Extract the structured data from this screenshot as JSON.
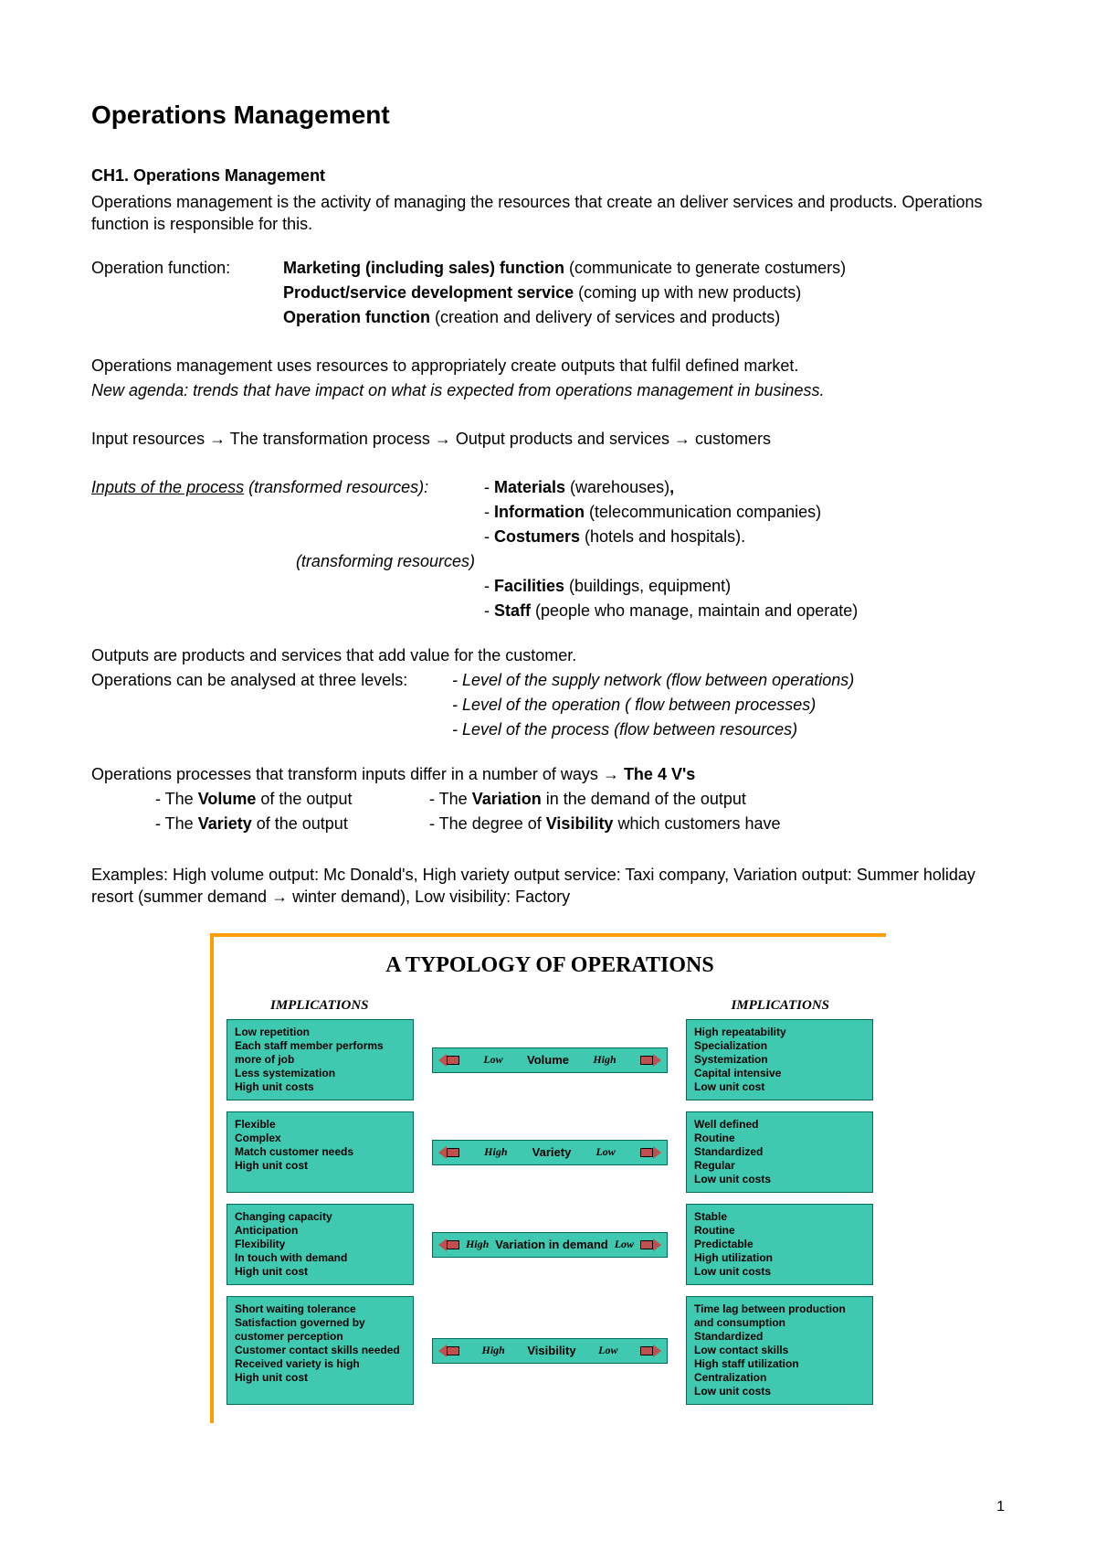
{
  "title": "Operations Management",
  "chapter": "CH1. Operations Management",
  "intro": "Operations management is the activity of managing the resources that create an deliver services and products. Operations function is responsible for this.",
  "op_fn_label": "Operation function:",
  "op_fn": {
    "l1b": "Marketing (including sales) function",
    "l1r": " (communicate to generate costumers)",
    "l2b": "Product/service development service",
    "l2r": " (coming up with new products)",
    "l3b": "Operation function",
    "l3r": " (creation and delivery of services and products)"
  },
  "uses_resources": "Operations management uses resources to appropriately create outputs that fulfil defined market.",
  "new_agenda": "New agenda: trends that have impact on what is expected from operations management in business.",
  "flow": {
    "a": "Input resources ",
    "b": " The transformation process ",
    "c": " Output products and services ",
    "d": " customers"
  },
  "arrow_glyph": "→",
  "inputs_heading": "Inputs of the process",
  "inputs_suffix": " (transformed resources):",
  "transformed": {
    "m_b": "Materials",
    "m_r": " (warehouses)",
    "i_b": "Information",
    "i_r": " (telecommunication companies)",
    "c_b": "Costumers",
    "c_r": " (hotels and hospitals)."
  },
  "transforming_label": "(transforming resources)",
  "transforming": {
    "f_b": "Facilities",
    "f_r": " (buildings, equipment)",
    "s_b": "Staff",
    "s_r": " (people who manage, maintain and operate)"
  },
  "outputs_line": "Outputs are products and services that add value for the customer.",
  "levels_intro": "Operations can be analysed at three levels: ",
  "levels": {
    "l1": "- Level of the supply network (flow between operations)",
    "l2": "- Level of the operation ( flow between processes)",
    "l3": "- Level of the process (flow between resources)"
  },
  "four_v_intro_a": "Operations processes that transform inputs differ in a number of ways ",
  "four_v_intro_b": " The 4 V's",
  "four_v": {
    "a1": "- The ",
    "a1b": "Volume",
    "a1r": " of the output",
    "a2": "- The ",
    "a2b": "Variation",
    "a2r": " in the demand of the output",
    "b1": "- The ",
    "b1b": "Variety",
    "b1r": " of the output",
    "b2": "- The degree of ",
    "b2b": "Visibility",
    "b2r": " which customers have"
  },
  "examples_a": "Examples: High volume output: Mc Donald's, High variety output service: Taxi company, Variation output: Summer holiday resort (summer demand ",
  "examples_b": " winter demand), Low visibility: Factory",
  "figure": {
    "title": "A TYPOLOGY OF OPERATIONS",
    "impl_label": "IMPLICATIONS",
    "colors": {
      "box_bg": "#3fc9b0",
      "box_border": "#006d5b",
      "arrow": "#c0504d",
      "frame": "#ff9e00"
    },
    "rows": [
      {
        "left": "Low repetition\nEach staff member performs more of job\nLess systemization\nHigh unit costs",
        "left_lbl": "Low",
        "name": "Volume",
        "right_lbl": "High",
        "right": "High repeatability\nSpecialization\nSystemization\nCapital intensive\nLow unit cost"
      },
      {
        "left": "Flexible\nComplex\nMatch customer needs\nHigh unit cost",
        "left_lbl": "High",
        "name": "Variety",
        "right_lbl": "Low",
        "right": "Well defined\nRoutine\nStandardized\nRegular\nLow unit costs"
      },
      {
        "left": "Changing capacity\nAnticipation\nFlexibility\nIn touch with demand\nHigh unit cost",
        "left_lbl": "High",
        "name": "Variation in demand",
        "right_lbl": "Low",
        "right": "Stable\nRoutine\nPredictable\nHigh utilization\nLow unit costs"
      },
      {
        "left": "Short waiting tolerance\nSatisfaction governed by customer perception\nCustomer contact skills needed\nReceived variety is high\nHigh unit cost",
        "left_lbl": "High",
        "name": "Visibility",
        "right_lbl": "Low",
        "right": "Time lag between production and consumption\nStandardized\nLow contact skills\nHigh staff utilization\nCentralization\nLow unit costs"
      }
    ]
  },
  "page_number": "1"
}
